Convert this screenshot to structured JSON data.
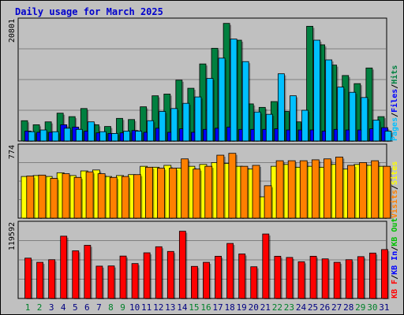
{
  "chart_data": {
    "type": "bar",
    "title": "Daily usage for March 2025",
    "days": [
      "1",
      "2",
      "3",
      "4",
      "5",
      "6",
      "7",
      "8",
      "9",
      "10",
      "11",
      "12",
      "13",
      "14",
      "15",
      "16",
      "17",
      "18",
      "19",
      "20",
      "21",
      "22",
      "23",
      "24",
      "25",
      "26",
      "27",
      "28",
      "29",
      "30",
      "31"
    ],
    "weekend_days": [
      "1",
      "2",
      "8",
      "9",
      "15",
      "16",
      "22",
      "23",
      "29",
      "30"
    ],
    "colors": {
      "hits": "#008040",
      "files": "#0000ff",
      "pages": "#00c0ff",
      "visits": "#ffff00",
      "sites": "#ff8000",
      "kb_f": "#ff0000",
      "kb_in": "#0000ff",
      "kb_out": "#00c000",
      "weekday_label": "#000080",
      "weekend_label": "#00802a"
    },
    "top_panel": {
      "max_label": "20801",
      "ylim": [
        0,
        20801
      ],
      "legend": [
        "Pages",
        "/",
        "Files",
        "/",
        "Hits"
      ],
      "series": [
        {
          "name": "Hits",
          "values": [
            3500,
            2800,
            3300,
            4800,
            4200,
            5600,
            2800,
            2500,
            3900,
            3700,
            5900,
            7800,
            8100,
            10500,
            9100,
            13300,
            16000,
            20300,
            17400,
            6400,
            5800,
            6800,
            5100,
            3300,
            19800,
            16600,
            13100,
            11300,
            9900,
            12600,
            4200
          ]
        },
        {
          "name": "Files",
          "values": [
            1700,
            1500,
            1500,
            2800,
            2400,
            1700,
            1400,
            1300,
            1400,
            1800,
            1500,
            2200,
            1500,
            2100,
            1500,
            2000,
            2200,
            2400,
            2000,
            2000,
            2000,
            2100,
            1900,
            1900,
            1900,
            1700,
            2000,
            1900,
            1900,
            2100,
            2300
          ]
        },
        {
          "name": "Pages",
          "values": [
            1600,
            1900,
            1600,
            2200,
            2000,
            3300,
            1600,
            1300,
            1700,
            1700,
            3500,
            5100,
            5600,
            6500,
            7600,
            10800,
            14300,
            17600,
            13700,
            5000,
            4600,
            11600,
            7800,
            5300,
            17400,
            14000,
            9300,
            8400,
            7500,
            3600,
            1700
          ]
        }
      ]
    },
    "mid_panel": {
      "max_label": "774",
      "ylim": [
        0,
        774
      ],
      "legend": [
        "Visits",
        "/",
        "Sites"
      ],
      "series": [
        {
          "name": "Visits",
          "values": [
            450,
            460,
            450,
            490,
            460,
            510,
            520,
            450,
            460,
            470,
            560,
            550,
            570,
            540,
            560,
            580,
            600,
            590,
            560,
            530,
            230,
            560,
            580,
            550,
            560,
            550,
            580,
            530,
            580,
            570,
            560
          ]
        },
        {
          "name": "Sites",
          "values": [
            455,
            465,
            430,
            480,
            440,
            500,
            480,
            440,
            450,
            470,
            550,
            540,
            540,
            640,
            530,
            560,
            680,
            700,
            560,
            570,
            350,
            620,
            620,
            620,
            630,
            640,
            660,
            570,
            600,
            620,
            560
          ]
        }
      ]
    },
    "bottom_panel": {
      "max_label": "119592",
      "ylim": [
        0,
        119592
      ],
      "legend": [
        "KB F",
        "/",
        "KB In",
        "/",
        "KB Out"
      ],
      "series": [
        {
          "name": "KB F",
          "values": [
            64500,
            57800,
            62000,
            99600,
            76200,
            85000,
            51700,
            52000,
            67800,
            55800,
            73000,
            82700,
            75200,
            107500,
            51300,
            57800,
            67500,
            88000,
            71200,
            50700,
            103100,
            67500,
            65600,
            58700,
            67500,
            63300,
            57800,
            62000,
            66900,
            72600,
            78200
          ]
        }
      ]
    }
  }
}
